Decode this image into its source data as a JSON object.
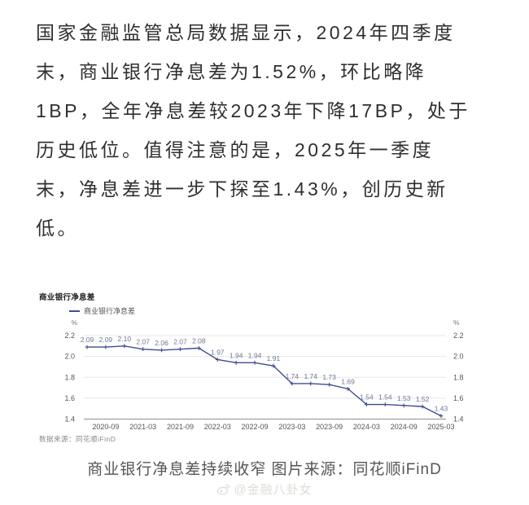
{
  "article": {
    "lines": [
      "国家金融监管总局数据显示，2024年四季度",
      "末，商业银行净息差为1.52%，环比略降",
      "1BP，全年净息差较2023年下降17BP，处于",
      "历史低位。值得注意的是，2025年一季度",
      "末，净息差进一步下探至1.43%，创历史新",
      "低。"
    ]
  },
  "chart": {
    "title": "商业银行净息差",
    "legend_label": "商业银行净息差",
    "source_note": "数据来源：同花顺iFinD",
    "line_color": "#3d4e94",
    "point_label_color": "#6e7694",
    "tick_color": "#555555",
    "grid_color": "#e7e7e7",
    "axis_color": "#8f8f8f"
  },
  "chart_data": {
    "type": "line",
    "title": "商业银行净息差",
    "series": [
      {
        "name": "商业银行净息差",
        "values": [
          2.09,
          2.09,
          2.1,
          2.07,
          2.06,
          2.07,
          2.08,
          1.97,
          1.94,
          1.94,
          1.91,
          1.74,
          1.74,
          1.73,
          1.69,
          1.54,
          1.54,
          1.53,
          1.52,
          1.43
        ]
      }
    ],
    "point_labels": [
      "2.09",
      "2.09",
      "2.10",
      "2.07",
      "2.06",
      "2.07",
      "2.08",
      "1.97",
      "1.94",
      "1.94",
      "1.91",
      "1.74",
      "1.74",
      "1.73",
      "1.69",
      "1.54",
      "1.54",
      "1.53",
      "1.52",
      "1.43"
    ],
    "x_tick_labels": [
      "2020-09",
      "2021-03",
      "2021-09",
      "2022-03",
      "2022-09",
      "2023-03",
      "2023-09",
      "2024-03",
      "2024-09",
      "2025-03"
    ],
    "x_tick_positions": [
      1,
      3,
      5,
      7,
      9,
      11,
      13,
      15,
      17,
      19
    ],
    "ylabel": "%",
    "y_ticks": [
      2.2,
      2.0,
      1.8,
      1.6,
      1.4
    ],
    "ylim": [
      1.4,
      2.2
    ],
    "grid": true,
    "legend_position": "top-left"
  },
  "caption": {
    "text": "商业银行净息差持续收窄 图片来源：同花顺iFinD"
  },
  "watermark": {
    "text": "@金融八卦女"
  }
}
